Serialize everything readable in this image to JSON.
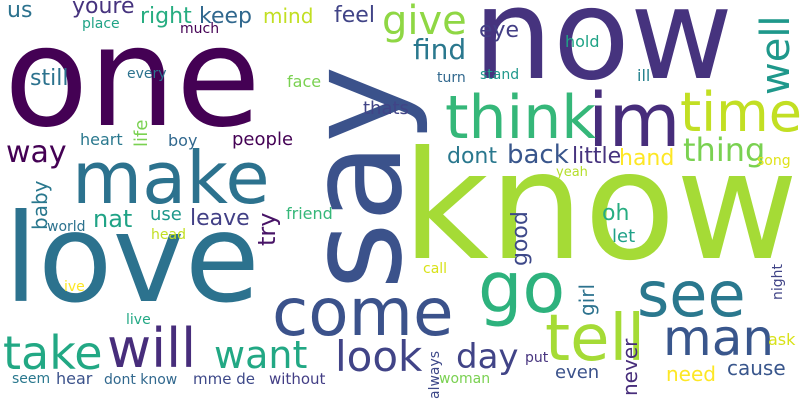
{
  "words": [
    {
      "text": "now",
      "color": "#46337e"
    },
    {
      "text": "one",
      "color": "#440154"
    },
    {
      "text": "say",
      "color": "#3b528b"
    },
    {
      "text": "know",
      "color": "#a5db36"
    },
    {
      "text": "love",
      "color": "#2c728e"
    },
    {
      "text": "make",
      "color": "#2c728e"
    },
    {
      "text": "im",
      "color": "#472d7b"
    },
    {
      "text": "think",
      "color": "#35b779"
    },
    {
      "text": "time",
      "color": "#c2df23"
    },
    {
      "text": "give",
      "color": "#8fd744"
    },
    {
      "text": "come",
      "color": "#3b528b"
    },
    {
      "text": "go",
      "color": "#2db27d"
    },
    {
      "text": "see",
      "color": "#2a788e"
    },
    {
      "text": "tell",
      "color": "#a5db36"
    },
    {
      "text": "man",
      "color": "#39568c"
    },
    {
      "text": "take",
      "color": "#22a884"
    },
    {
      "text": "will",
      "color": "#472d7b"
    },
    {
      "text": "want",
      "color": "#22a884"
    },
    {
      "text": "look",
      "color": "#414487"
    },
    {
      "text": "day",
      "color": "#414487"
    },
    {
      "text": "well",
      "color": "#1f988b"
    },
    {
      "text": "thing",
      "color": "#7ad151"
    },
    {
      "text": "find",
      "color": "#2a788e"
    },
    {
      "text": "way",
      "color": "#440154"
    },
    {
      "text": "eye",
      "color": "#433e85"
    },
    {
      "text": "us",
      "color": "#2c728e"
    },
    {
      "text": "youre",
      "color": "#46337e"
    },
    {
      "text": "right",
      "color": "#27ad81"
    },
    {
      "text": "keep",
      "color": "#31688e"
    },
    {
      "text": "mind",
      "color": "#c2df23"
    },
    {
      "text": "feel",
      "color": "#414487"
    },
    {
      "text": "place",
      "color": "#20a386"
    },
    {
      "text": "much",
      "color": "#440154"
    },
    {
      "text": "hold",
      "color": "#20a386"
    },
    {
      "text": "still",
      "color": "#2c728e"
    },
    {
      "text": "every",
      "color": "#2c728e"
    },
    {
      "text": "face",
      "color": "#7ad151"
    },
    {
      "text": "turn",
      "color": "#31688e"
    },
    {
      "text": "stand",
      "color": "#1f988b"
    },
    {
      "text": "ill",
      "color": "#26828e"
    },
    {
      "text": "thats",
      "color": "#414487"
    },
    {
      "text": "life",
      "color": "#7ad151"
    },
    {
      "text": "heart",
      "color": "#2a788e"
    },
    {
      "text": "boy",
      "color": "#31688e"
    },
    {
      "text": "people",
      "color": "#440154"
    },
    {
      "text": "dont",
      "color": "#2a788e"
    },
    {
      "text": "back",
      "color": "#39568c"
    },
    {
      "text": "little",
      "color": "#46337e"
    },
    {
      "text": "hand",
      "color": "#fde725"
    },
    {
      "text": "song",
      "color": "#dfe318"
    },
    {
      "text": "yeah",
      "color": "#b5de2b"
    },
    {
      "text": "baby",
      "color": "#2a788e"
    },
    {
      "text": "nat",
      "color": "#20a386"
    },
    {
      "text": "use",
      "color": "#1f988b"
    },
    {
      "text": "leave",
      "color": "#424086"
    },
    {
      "text": "try",
      "color": "#481467"
    },
    {
      "text": "friend",
      "color": "#35b779"
    },
    {
      "text": "good",
      "color": "#3e4989"
    },
    {
      "text": "oh",
      "color": "#27ad81"
    },
    {
      "text": "let",
      "color": "#1fa188"
    },
    {
      "text": "world",
      "color": "#2c728e"
    },
    {
      "text": "head",
      "color": "#c2df23"
    },
    {
      "text": "night",
      "color": "#414487"
    },
    {
      "text": "ive",
      "color": "#fde725"
    },
    {
      "text": "call",
      "color": "#d8e219"
    },
    {
      "text": "girl",
      "color": "#2c728e"
    },
    {
      "text": "live",
      "color": "#22a884"
    },
    {
      "text": "ask",
      "color": "#d8e219"
    },
    {
      "text": "never",
      "color": "#472d7b"
    },
    {
      "text": "cause",
      "color": "#39568c"
    },
    {
      "text": "need",
      "color": "#fde725"
    },
    {
      "text": "put",
      "color": "#46337e"
    },
    {
      "text": "even",
      "color": "#3b528b"
    },
    {
      "text": "always",
      "color": "#3e4989"
    },
    {
      "text": "woman",
      "color": "#7ad151"
    },
    {
      "text": "seem",
      "color": "#2a788e"
    },
    {
      "text": "hear",
      "color": "#3b528b"
    },
    {
      "text": "dont know",
      "color": "#31688e"
    },
    {
      "text": "mme de",
      "color": "#3e4989"
    },
    {
      "text": "without",
      "color": "#433e85"
    }
  ]
}
